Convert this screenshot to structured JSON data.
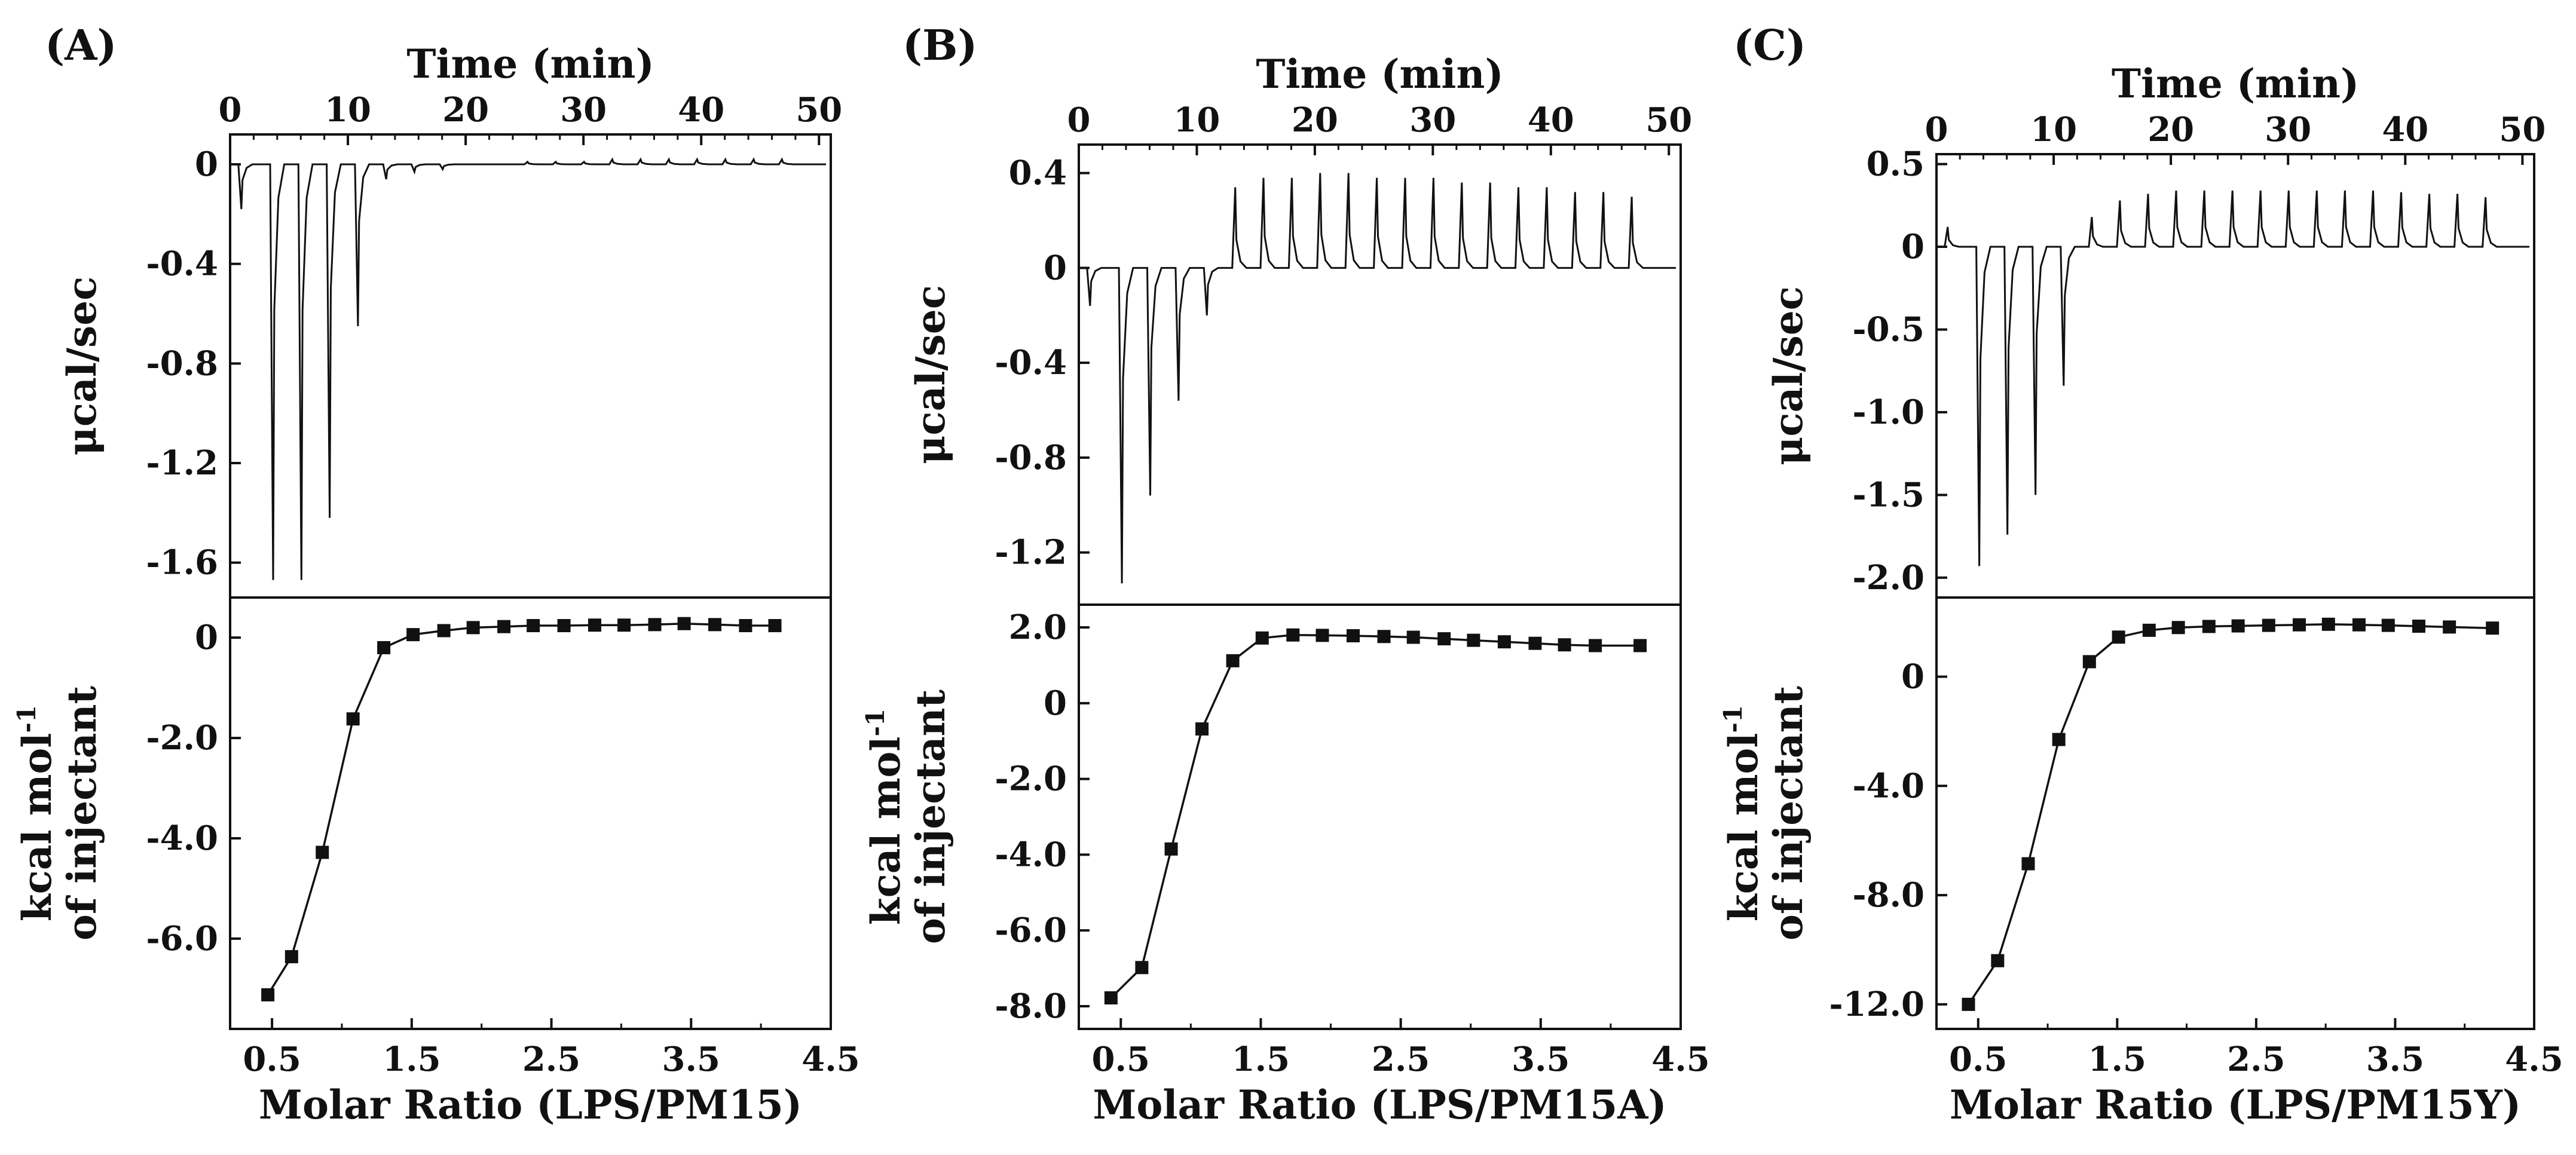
{
  "chart_data": [
    {
      "type": "line",
      "panel_label": "(A)",
      "top": {
        "xlabel": "Time (min)",
        "ylabel": "μcal/sec",
        "xlim": [
          0,
          51
        ],
        "ylim": [
          -1.74,
          0.12
        ],
        "xticks": [
          0,
          10,
          20,
          30,
          40,
          50
        ],
        "yticks": [
          0,
          -0.4,
          -0.8,
          -1.2,
          -1.6
        ],
        "ytick_labels": [
          "0",
          "-0.4",
          "-0.8",
          "-1.2",
          "-1.6"
        ],
        "first_injection_min": 0.8,
        "first_injection_peak": -0.18,
        "injection_start_min": 3.5,
        "injection_interval_min": 2.4,
        "peaks": [
          -1.67,
          -1.67,
          -1.42,
          -0.65,
          -0.06,
          -0.03,
          -0.02,
          0.0,
          0.0,
          0.01,
          0.01,
          0.01,
          0.02,
          0.02,
          0.02,
          0.02,
          0.02,
          0.02,
          0.02
        ]
      },
      "bottom": {
        "xlabel": "Molar Ratio (LPS/PM15)",
        "ylabel": "kcal mol-1 of injectant",
        "ylabel_line1": "kcal mol",
        "ylabel_sup": "-1",
        "ylabel_line2": "of injectant",
        "xlim": [
          0.2,
          4.5
        ],
        "ylim": [
          -7.8,
          0.8
        ],
        "xticks": [
          0.5,
          1.5,
          2.5,
          3.5,
          4.5
        ],
        "xtick_labels": [
          "0.5",
          "1.5",
          "2.5",
          "3.5",
          "4.5"
        ],
        "yticks": [
          0,
          -2.0,
          -4.0,
          -6.0
        ],
        "ytick_labels": [
          "0",
          "-2.0",
          "-4.0",
          "-6.0"
        ],
        "x": [
          0.47,
          0.64,
          0.86,
          1.08,
          1.3,
          1.51,
          1.73,
          1.94,
          2.16,
          2.37,
          2.59,
          2.81,
          3.02,
          3.24,
          3.45,
          3.67,
          3.89,
          4.1
        ],
        "y": [
          -7.12,
          -6.36,
          -4.28,
          -1.62,
          -0.2,
          0.06,
          0.14,
          0.2,
          0.22,
          0.24,
          0.24,
          0.25,
          0.25,
          0.26,
          0.28,
          0.26,
          0.24,
          0.24
        ]
      }
    },
    {
      "type": "line",
      "panel_label": "(B)",
      "top": {
        "xlabel": "Time (min)",
        "ylabel": "μcal/sec",
        "xlim": [
          0,
          51
        ],
        "ylim": [
          -1.42,
          0.52
        ],
        "xticks": [
          0,
          10,
          20,
          30,
          40,
          50
        ],
        "yticks": [
          0.4,
          0,
          -0.4,
          -0.8,
          -1.2
        ],
        "ytick_labels": [
          "0.4",
          "0",
          "-0.4",
          "-0.8",
          "-1.2"
        ],
        "first_injection_min": 0.8,
        "first_injection_peak": -0.16,
        "injection_start_min": 3.5,
        "injection_interval_min": 2.4,
        "peaks": [
          -1.33,
          -0.96,
          -0.56,
          -0.2,
          0.34,
          0.38,
          0.38,
          0.4,
          0.4,
          0.38,
          0.38,
          0.38,
          0.36,
          0.36,
          0.34,
          0.34,
          0.32,
          0.32,
          0.3
        ]
      },
      "bottom": {
        "xlabel": "Molar Ratio (LPS/PM15A)",
        "ylabel": "kcal mol-1 of injectant",
        "ylabel_line1": "kcal mol",
        "ylabel_sup": "-1",
        "ylabel_line2": "of injectant",
        "xlim": [
          0.2,
          4.5
        ],
        "ylim": [
          -8.6,
          2.6
        ],
        "xticks": [
          0.5,
          1.5,
          2.5,
          3.5,
          4.5
        ],
        "xtick_labels": [
          "0.5",
          "1.5",
          "2.5",
          "3.5",
          "4.5"
        ],
        "yticks": [
          2.0,
          0,
          -2.0,
          -4.0,
          -6.0,
          -8.0
        ],
        "ytick_labels": [
          "2.0",
          "0",
          "-2.0",
          "-4.0",
          "-6.0",
          "-8.0"
        ],
        "x": [
          0.43,
          0.65,
          0.86,
          1.08,
          1.3,
          1.51,
          1.73,
          1.94,
          2.16,
          2.38,
          2.59,
          2.81,
          3.02,
          3.24,
          3.46,
          3.67,
          3.89,
          4.21
        ],
        "y": [
          -7.78,
          -6.98,
          -3.85,
          -0.68,
          1.12,
          1.72,
          1.8,
          1.79,
          1.78,
          1.76,
          1.74,
          1.7,
          1.66,
          1.62,
          1.58,
          1.54,
          1.52,
          1.52
        ]
      }
    },
    {
      "type": "line",
      "panel_label": "(C)",
      "top": {
        "xlabel": "Time (min)",
        "ylabel": "μcal/sec",
        "xlim": [
          0,
          51
        ],
        "ylim": [
          -2.12,
          0.56
        ],
        "xticks": [
          0,
          10,
          20,
          30,
          40,
          50
        ],
        "yticks": [
          0.5,
          0,
          -0.5,
          -1.0,
          -1.5,
          -2.0
        ],
        "ytick_labels": [
          "0.5",
          "0",
          "-0.5",
          "-1.0",
          "-1.5",
          "-2.0"
        ],
        "first_injection_min": 0.8,
        "first_injection_peak": 0.12,
        "injection_start_min": 3.5,
        "injection_interval_min": 2.4,
        "peaks": [
          -1.93,
          -1.74,
          -1.5,
          -0.84,
          0.18,
          0.28,
          0.32,
          0.34,
          0.34,
          0.34,
          0.34,
          0.34,
          0.34,
          0.34,
          0.34,
          0.33,
          0.32,
          0.32,
          0.3
        ]
      },
      "bottom": {
        "xlabel": "Molar Ratio (LPS/PM15Y)",
        "ylabel": "kcal mol-1 of injectant",
        "ylabel_line1": "kcal mol",
        "ylabel_sup": "-1",
        "ylabel_line2": "of injectant",
        "xlim": [
          0.2,
          4.5
        ],
        "ylim": [
          -12.9,
          2.9
        ],
        "xticks": [
          0.5,
          1.5,
          2.5,
          3.5,
          4.5
        ],
        "xtick_labels": [
          "0.5",
          "1.5",
          "2.5",
          "3.5",
          "4.5"
        ],
        "yticks": [
          0,
          -4.0,
          -8.0,
          -12.0
        ],
        "ytick_labels": [
          "0",
          "-4.0",
          "-8.0",
          "-12.0"
        ],
        "x": [
          0.43,
          0.64,
          0.86,
          1.08,
          1.3,
          1.51,
          1.73,
          1.94,
          2.16,
          2.37,
          2.59,
          2.81,
          3.02,
          3.24,
          3.45,
          3.67,
          3.89,
          4.2
        ],
        "y": [
          -12.0,
          -10.4,
          -6.85,
          -2.3,
          0.55,
          1.45,
          1.7,
          1.8,
          1.84,
          1.86,
          1.88,
          1.9,
          1.92,
          1.9,
          1.88,
          1.85,
          1.82,
          1.78
        ]
      }
    }
  ]
}
